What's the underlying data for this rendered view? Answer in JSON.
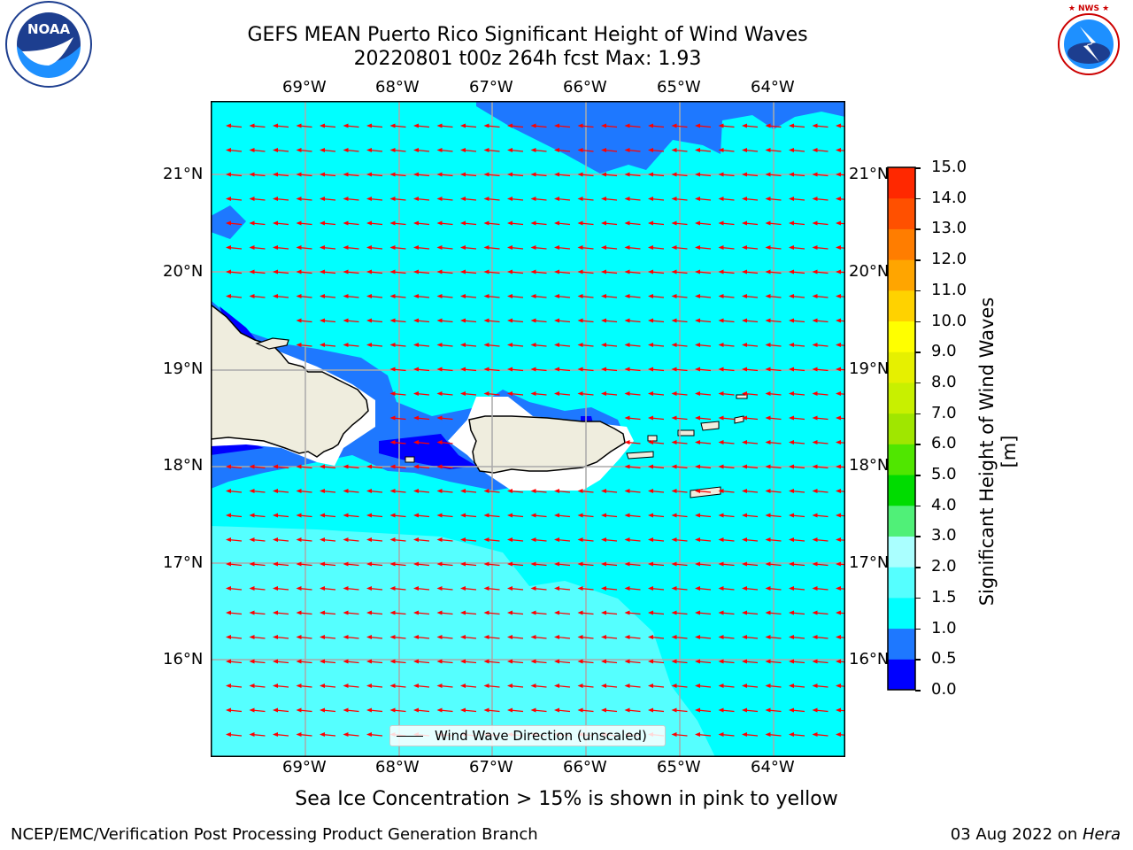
{
  "header": {
    "title_line1": "GEFS MEAN Puerto Rico Significant Height of Wind Waves",
    "title_line2": "20220801 t00z 264h fcst   Max: 1.93"
  },
  "logos": {
    "left_org": "NOAA",
    "left_ring_text": "NATIONAL OCEANIC AND ATMOSPHERIC ADMINISTRATION · U.S. DEPARTMENT OF COMMERCE",
    "right_ring_text": "NATIONAL WEATHER SERVICE"
  },
  "map": {
    "lon_labels": [
      "69°W",
      "68°W",
      "67°W",
      "66°W",
      "65°W",
      "64°W"
    ],
    "lat_labels": [
      "21°N",
      "20°N",
      "19°N",
      "18°N",
      "17°N",
      "16°N"
    ],
    "legend_label": "Wind Wave Direction (unscaled)",
    "arrow_color": "#ff0000",
    "land_color": "#efedde"
  },
  "colorbar": {
    "label": "Significant Height of Wind Waves [m]",
    "ticks": [
      "0.0",
      "0.5",
      "1.0",
      "1.5",
      "2.0",
      "3.0",
      "4.0",
      "5.0",
      "6.0",
      "7.0",
      "8.0",
      "9.0",
      "10.0",
      "11.0",
      "12.0",
      "13.0",
      "14.0",
      "15.0"
    ],
    "colors": [
      "#0000ff",
      "#1e78ff",
      "#00ffff",
      "#55ffff",
      "#aaffff",
      "#50f078",
      "#00dc00",
      "#50e600",
      "#a0e600",
      "#c8f000",
      "#e6f000",
      "#ffff00",
      "#ffd200",
      "#ffa500",
      "#ff7d00",
      "#ff5000",
      "#ff2800",
      "#ff0000"
    ]
  },
  "notes": {
    "ice": "Sea Ice Concentration > 15% is shown in pink to yellow"
  },
  "footer": {
    "left": "NCEP/EMC/Verification Post Processing Product Generation Branch",
    "date": "03 Aug 2022 on ",
    "machine": "Hera"
  }
}
